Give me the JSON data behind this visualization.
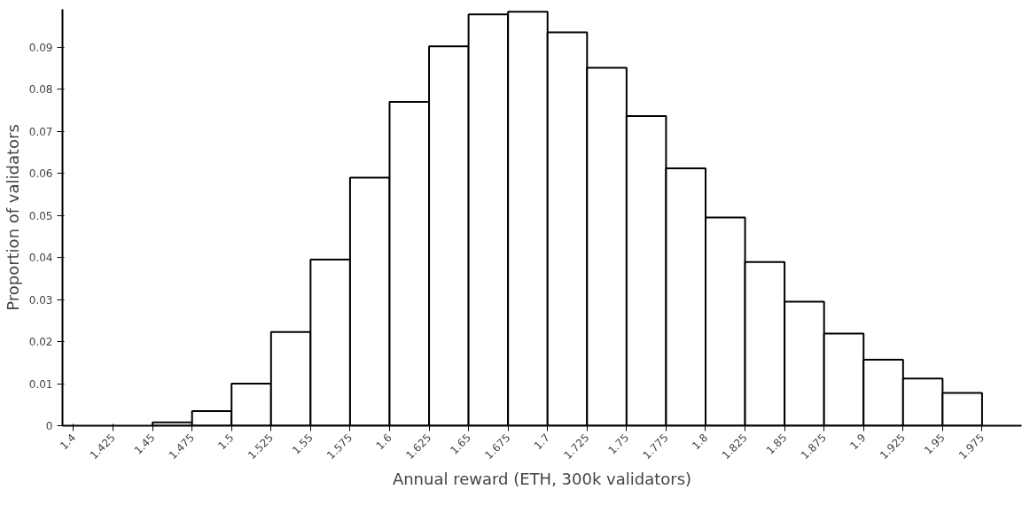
{
  "chart_data": {
    "type": "histogram",
    "xlabel": "Annual reward (ETH, 300k validators)",
    "ylabel": "Proportion of validators",
    "bins": [
      1.4,
      1.425,
      1.45,
      1.475,
      1.5,
      1.525,
      1.55,
      1.575,
      1.6,
      1.625,
      1.65,
      1.675,
      1.7,
      1.725,
      1.75,
      1.775,
      1.8,
      1.825,
      1.85,
      1.875,
      1.9,
      1.925,
      1.95,
      1.975,
      2.0
    ],
    "values": [
      null,
      null,
      0.0008,
      0.0035,
      0.01,
      0.0223,
      0.0395,
      0.059,
      0.077,
      0.0902,
      0.0978,
      0.0984,
      0.0935,
      0.0851,
      0.0736,
      0.0612,
      0.0495,
      0.0389,
      0.0295,
      0.0219,
      0.0157,
      0.0112,
      0.0078,
      null
    ],
    "color": "#ffffff",
    "xlim": [
      1.393,
      2.0
    ],
    "ylim": [
      0,
      0.099
    ],
    "xticks": [
      1.4,
      1.425,
      1.45,
      1.475,
      1.5,
      1.525,
      1.55,
      1.575,
      1.6,
      1.625,
      1.65,
      1.675,
      1.7,
      1.725,
      1.75,
      1.775,
      1.8,
      1.825,
      1.85,
      1.875,
      1.9,
      1.925,
      1.95,
      1.975
    ],
    "yticks": [
      0,
      0.01,
      0.02,
      0.03,
      0.04,
      0.05,
      0.06,
      0.07,
      0.08,
      0.09
    ],
    "grid": false
  }
}
